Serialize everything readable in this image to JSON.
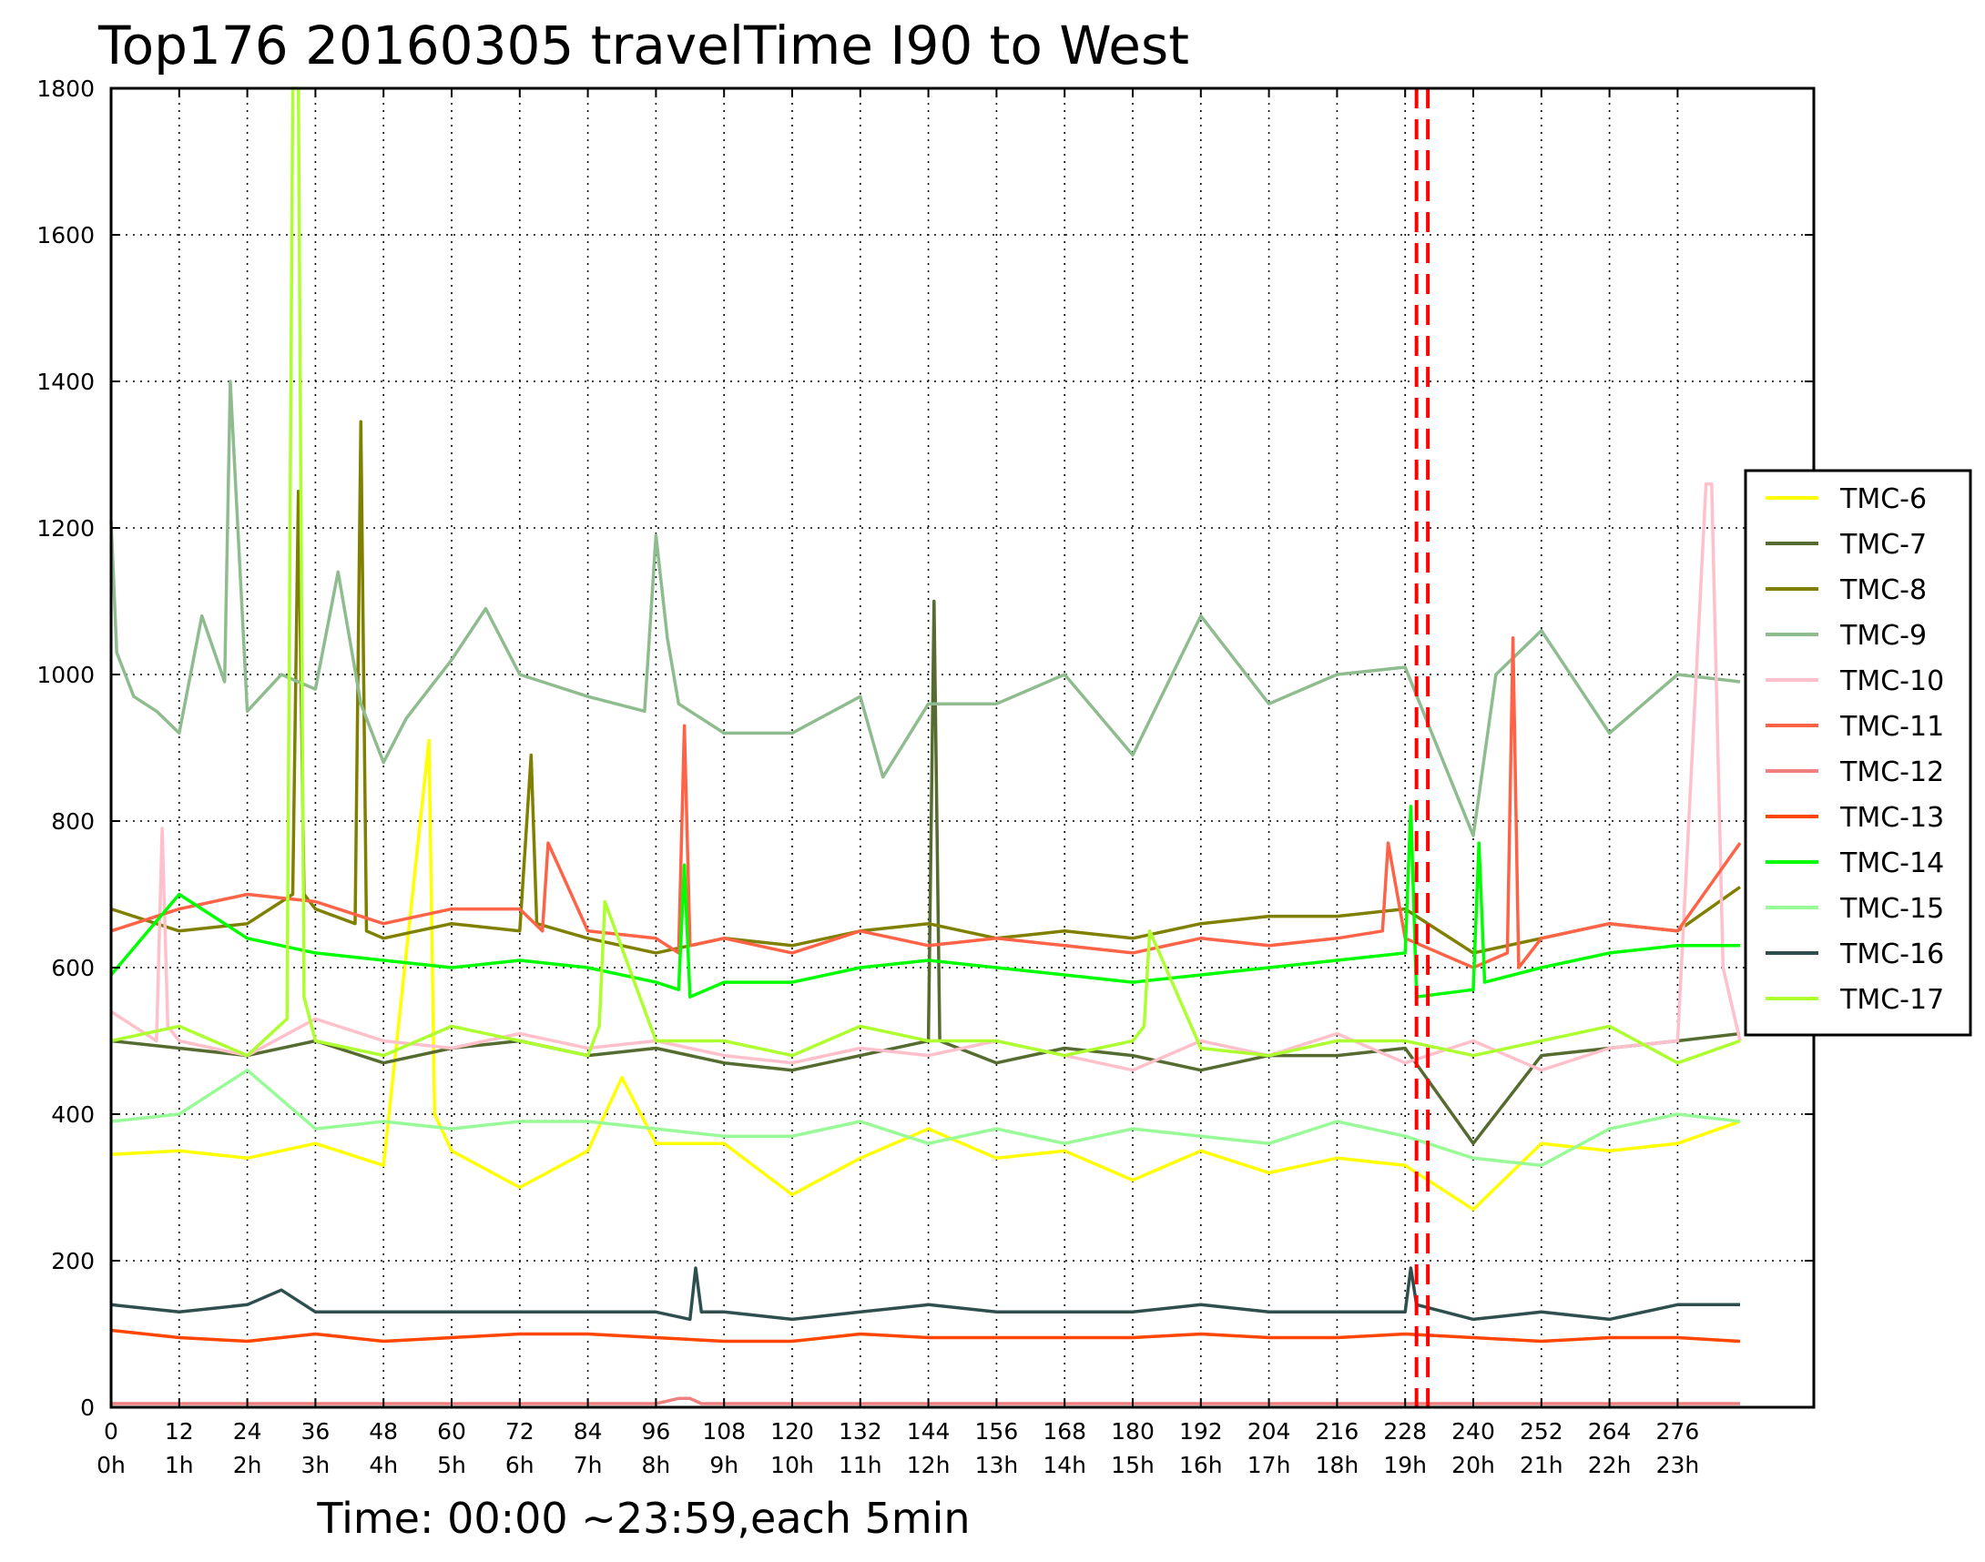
{
  "chart_data": {
    "type": "line",
    "title": "Top176 20160305 travelTime I90 to West",
    "xlabel": "Time: 00:00 ~23:59,each 5min",
    "ylabel": "",
    "xlim": [
      0,
      300
    ],
    "ylim": [
      0,
      1800
    ],
    "grid": true,
    "legend_position": "right",
    "x_ticks": [
      {
        "value": 0,
        "label": "0",
        "hour": "0h"
      },
      {
        "value": 12,
        "label": "12",
        "hour": "1h"
      },
      {
        "value": 24,
        "label": "24",
        "hour": "2h"
      },
      {
        "value": 36,
        "label": "36",
        "hour": "3h"
      },
      {
        "value": 48,
        "label": "48",
        "hour": "4h"
      },
      {
        "value": 60,
        "label": "60",
        "hour": "5h"
      },
      {
        "value": 72,
        "label": "72",
        "hour": "6h"
      },
      {
        "value": 84,
        "label": "84",
        "hour": "7h"
      },
      {
        "value": 96,
        "label": "96",
        "hour": "8h"
      },
      {
        "value": 108,
        "label": "108",
        "hour": "9h"
      },
      {
        "value": 120,
        "label": "120",
        "hour": "10h"
      },
      {
        "value": 132,
        "label": "132",
        "hour": "11h"
      },
      {
        "value": 144,
        "label": "144",
        "hour": "12h"
      },
      {
        "value": 156,
        "label": "156",
        "hour": "13h"
      },
      {
        "value": 168,
        "label": "168",
        "hour": "14h"
      },
      {
        "value": 180,
        "label": "180",
        "hour": "15h"
      },
      {
        "value": 192,
        "label": "192",
        "hour": "16h"
      },
      {
        "value": 204,
        "label": "204",
        "hour": "17h"
      },
      {
        "value": 216,
        "label": "216",
        "hour": "18h"
      },
      {
        "value": 228,
        "label": "228",
        "hour": "19h"
      },
      {
        "value": 240,
        "label": "240",
        "hour": "20h"
      },
      {
        "value": 252,
        "label": "252",
        "hour": "21h"
      },
      {
        "value": 264,
        "label": "264",
        "hour": "22h"
      },
      {
        "value": 276,
        "label": "276",
        "hour": "23h"
      }
    ],
    "y_ticks": [
      0,
      200,
      400,
      600,
      800,
      1000,
      1200,
      1400,
      1600,
      1800
    ],
    "vertical_markers": [
      {
        "x": 230,
        "color": "#ff0000",
        "style": "dashed"
      },
      {
        "x": 232,
        "color": "#ff0000",
        "style": "dashed"
      }
    ],
    "series": [
      {
        "name": "TMC-6",
        "color": "#ffff00",
        "x": [
          0,
          12,
          24,
          36,
          48,
          56,
          57,
          60,
          72,
          84,
          90,
          96,
          108,
          120,
          132,
          144,
          156,
          168,
          180,
          192,
          204,
          216,
          228,
          240,
          252,
          264,
          276,
          287
        ],
        "y": [
          345,
          350,
          340,
          360,
          330,
          910,
          400,
          350,
          300,
          350,
          450,
          360,
          360,
          290,
          340,
          380,
          340,
          350,
          310,
          350,
          320,
          340,
          330,
          270,
          360,
          350,
          360,
          390
        ]
      },
      {
        "name": "TMC-7",
        "color": "#556b2f",
        "x": [
          0,
          12,
          24,
          36,
          48,
          60,
          72,
          84,
          96,
          108,
          120,
          132,
          144,
          145,
          146,
          156,
          168,
          180,
          192,
          204,
          216,
          228,
          240,
          252,
          264,
          276,
          287
        ],
        "y": [
          500,
          490,
          480,
          500,
          470,
          490,
          500,
          480,
          490,
          470,
          460,
          480,
          500,
          1100,
          500,
          470,
          490,
          480,
          460,
          480,
          480,
          490,
          360,
          480,
          490,
          500,
          510
        ]
      },
      {
        "name": "TMC-8",
        "color": "#808000",
        "x": [
          0,
          12,
          24,
          32,
          33,
          34,
          36,
          43,
          44,
          45,
          48,
          60,
          72,
          74,
          75,
          84,
          96,
          108,
          120,
          132,
          144,
          156,
          168,
          180,
          192,
          204,
          216,
          228,
          240,
          252,
          264,
          276,
          287
        ],
        "y": [
          680,
          650,
          660,
          700,
          1250,
          700,
          680,
          660,
          1345,
          650,
          640,
          660,
          650,
          890,
          660,
          640,
          620,
          640,
          630,
          650,
          660,
          640,
          650,
          640,
          660,
          670,
          670,
          680,
          620,
          640,
          660,
          650,
          710
        ]
      },
      {
        "name": "TMC-9",
        "color": "#8fbc8f",
        "x": [
          0,
          1,
          4,
          8,
          12,
          16,
          20,
          21,
          24,
          30,
          36,
          40,
          44,
          48,
          52,
          60,
          66,
          72,
          84,
          94,
          96,
          98,
          100,
          108,
          120,
          132,
          136,
          144,
          156,
          168,
          180,
          192,
          204,
          216,
          228,
          240,
          244,
          252,
          264,
          276,
          287
        ],
        "y": [
          1210,
          1030,
          970,
          950,
          920,
          1080,
          990,
          1400,
          950,
          1000,
          980,
          1140,
          960,
          880,
          940,
          1020,
          1090,
          1000,
          970,
          950,
          1190,
          1050,
          960,
          920,
          920,
          970,
          860,
          960,
          960,
          1000,
          890,
          1080,
          960,
          1000,
          1010,
          780,
          1000,
          1060,
          920,
          1000,
          990
        ]
      },
      {
        "name": "TMC-10",
        "color": "#ffc0cb",
        "x": [
          0,
          8,
          9,
          10,
          12,
          24,
          36,
          48,
          60,
          72,
          84,
          96,
          108,
          120,
          132,
          144,
          156,
          168,
          180,
          192,
          204,
          216,
          228,
          240,
          252,
          264,
          276,
          281,
          282,
          284,
          287
        ],
        "y": [
          540,
          500,
          790,
          520,
          500,
          480,
          530,
          500,
          490,
          510,
          490,
          500,
          480,
          470,
          490,
          480,
          500,
          480,
          460,
          500,
          480,
          510,
          470,
          500,
          460,
          490,
          500,
          1260,
          1260,
          600,
          500
        ]
      },
      {
        "name": "TMC-11",
        "color": "#ff6347",
        "x": [
          0,
          12,
          24,
          36,
          48,
          60,
          72,
          76,
          77,
          84,
          96,
          100,
          101,
          102,
          108,
          120,
          132,
          144,
          156,
          168,
          180,
          192,
          204,
          216,
          224,
          225,
          228,
          240,
          246,
          247,
          248,
          252,
          264,
          276,
          287
        ],
        "y": [
          650,
          680,
          700,
          690,
          660,
          680,
          680,
          650,
          770,
          650,
          640,
          620,
          930,
          630,
          640,
          620,
          650,
          630,
          640,
          630,
          620,
          640,
          630,
          640,
          650,
          770,
          640,
          600,
          620,
          1050,
          600,
          640,
          660,
          650,
          770
        ]
      },
      {
        "name": "TMC-12",
        "color": "#f08080",
        "x": [
          0,
          24,
          48,
          72,
          96,
          100,
          102,
          104,
          108,
          120,
          144,
          168,
          192,
          216,
          240,
          264,
          287
        ],
        "y": [
          5,
          5,
          5,
          5,
          5,
          12,
          12,
          5,
          5,
          5,
          5,
          5,
          5,
          5,
          5,
          5,
          5
        ]
      },
      {
        "name": "TMC-13",
        "color": "#ff4500",
        "x": [
          0,
          12,
          24,
          36,
          48,
          60,
          72,
          84,
          96,
          108,
          120,
          132,
          144,
          156,
          168,
          180,
          192,
          204,
          216,
          228,
          240,
          252,
          264,
          276,
          287
        ],
        "y": [
          105,
          95,
          90,
          100,
          90,
          95,
          100,
          100,
          95,
          90,
          90,
          100,
          95,
          95,
          95,
          95,
          100,
          95,
          95,
          100,
          95,
          90,
          95,
          95,
          90
        ]
      },
      {
        "name": "TMC-14",
        "color": "#00ff00",
        "x": [
          0,
          12,
          24,
          36,
          48,
          60,
          72,
          84,
          96,
          100,
          101,
          102,
          108,
          120,
          132,
          144,
          156,
          168,
          180,
          192,
          204,
          216,
          228,
          229,
          230,
          240,
          241,
          242,
          252,
          264,
          276,
          287
        ],
        "y": [
          590,
          700,
          640,
          620,
          610,
          600,
          610,
          600,
          580,
          570,
          740,
          560,
          580,
          580,
          600,
          610,
          600,
          590,
          580,
          590,
          600,
          610,
          620,
          820,
          560,
          570,
          770,
          580,
          600,
          620,
          630,
          630
        ]
      },
      {
        "name": "TMC-15",
        "color": "#98fb98",
        "x": [
          0,
          12,
          24,
          36,
          48,
          60,
          72,
          84,
          96,
          108,
          120,
          132,
          144,
          156,
          168,
          180,
          192,
          204,
          216,
          228,
          240,
          252,
          264,
          276,
          287
        ],
        "y": [
          390,
          400,
          460,
          380,
          390,
          380,
          390,
          390,
          380,
          370,
          370,
          390,
          360,
          380,
          360,
          380,
          370,
          360,
          390,
          370,
          340,
          330,
          380,
          400,
          390
        ]
      },
      {
        "name": "TMC-16",
        "color": "#2f4f4f",
        "x": [
          0,
          12,
          24,
          30,
          36,
          48,
          60,
          72,
          84,
          96,
          102,
          103,
          104,
          108,
          120,
          132,
          144,
          156,
          168,
          180,
          192,
          204,
          216,
          228,
          229,
          230,
          240,
          252,
          264,
          276,
          287
        ],
        "y": [
          140,
          130,
          140,
          160,
          130,
          130,
          130,
          130,
          130,
          130,
          120,
          190,
          130,
          130,
          120,
          130,
          140,
          130,
          130,
          130,
          140,
          130,
          130,
          130,
          190,
          140,
          120,
          130,
          120,
          140,
          140
        ]
      },
      {
        "name": "TMC-17",
        "color": "#adff2f",
        "x": [
          0,
          12,
          24,
          31,
          32,
          33,
          34,
          36,
          48,
          60,
          72,
          84,
          86,
          87,
          96,
          108,
          120,
          132,
          144,
          156,
          168,
          180,
          182,
          183,
          192,
          204,
          216,
          228,
          240,
          252,
          264,
          276,
          287
        ],
        "y": [
          500,
          520,
          480,
          530,
          1800,
          1800,
          560,
          500,
          480,
          520,
          500,
          480,
          520,
          690,
          500,
          500,
          480,
          520,
          500,
          500,
          480,
          500,
          520,
          650,
          490,
          480,
          500,
          500,
          480,
          500,
          520,
          470,
          500
        ]
      }
    ]
  }
}
